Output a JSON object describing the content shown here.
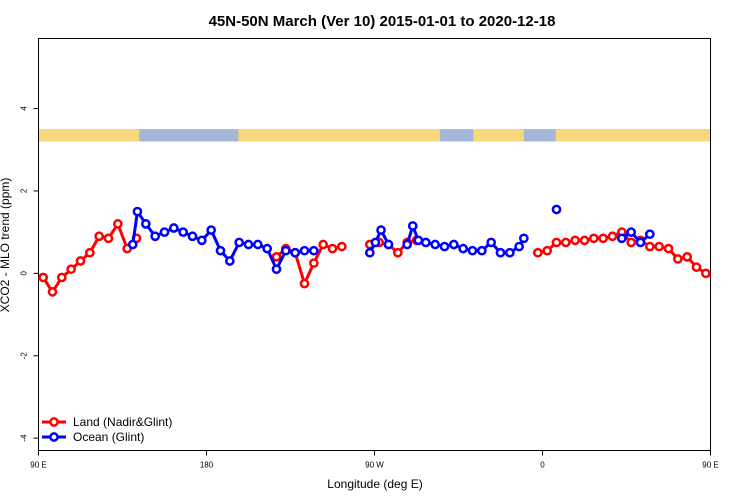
{
  "chart_data": {
    "type": "line",
    "title": "45N-50N March (Ver 10)   2015-01-01 to 2020-12-18",
    "xlabel": "Longitude (deg E)",
    "ylabel": "XCO2 - MLO trend (ppm)",
    "xlim": [
      90,
      450
    ],
    "ylim": [
      -4.3,
      5.7
    ],
    "grid": false,
    "legend_position": "bottom-left",
    "x_ticks": [
      {
        "value": 90,
        "label": "90 E"
      },
      {
        "value": 180,
        "label": "180"
      },
      {
        "value": 270,
        "label": "90 W"
      },
      {
        "value": 360,
        "label": "0"
      },
      {
        "value": 450,
        "label": "90 E"
      },
      {
        "value": 540,
        "label": "180"
      }
    ],
    "y_ticks": [
      {
        "value": -4,
        "label": "-4"
      },
      {
        "value": -2,
        "label": "-2"
      },
      {
        "value": 0,
        "label": "0"
      },
      {
        "value": 2,
        "label": "2"
      },
      {
        "value": 4,
        "label": "4"
      }
    ],
    "map_strip": {
      "y_range": [
        3.2,
        3.5
      ],
      "ocean_color": "#a3b7d9",
      "land_color": "#f7d87a",
      "land_segments": [
        [
          90,
          144
        ],
        [
          197,
          305
        ],
        [
          323,
          350
        ],
        [
          367,
          484
        ],
        [
          487,
          522
        ]
      ]
    },
    "series": [
      {
        "name": "Land (Nadir&Glint)",
        "color": "#ff0000",
        "points": [
          [
            92.5,
            -0.1
          ],
          [
            97.5,
            -0.45
          ],
          [
            102.5,
            -0.1
          ],
          [
            107.5,
            0.1
          ],
          [
            112.5,
            0.3
          ],
          [
            117.5,
            0.5
          ],
          [
            122.5,
            0.9
          ],
          [
            127.5,
            0.85
          ],
          [
            132.5,
            1.2
          ],
          [
            137.5,
            0.6
          ],
          [
            142.5,
            0.85
          ],
          null,
          [
            217.5,
            0.4
          ],
          [
            222.5,
            0.6
          ],
          [
            227.5,
            0.5
          ],
          [
            232.5,
            -0.25
          ],
          [
            237.5,
            0.25
          ],
          [
            242.5,
            0.7
          ],
          [
            247.5,
            0.6
          ],
          [
            252.5,
            0.65
          ],
          null,
          [
            267.5,
            0.7
          ],
          [
            272.5,
            0.75
          ],
          [
            277.5,
            0.7
          ],
          [
            282.5,
            0.5
          ],
          [
            287.5,
            0.75
          ],
          [
            292.5,
            0.8
          ],
          null,
          [
            357.5,
            0.5
          ],
          [
            362.5,
            0.55
          ],
          [
            367.5,
            0.75
          ],
          [
            372.5,
            0.75
          ],
          [
            377.5,
            0.8
          ],
          [
            382.5,
            0.8
          ],
          [
            387.5,
            0.85
          ],
          [
            392.5,
            0.85
          ],
          [
            397.5,
            0.9
          ],
          [
            402.5,
            1.0
          ],
          [
            407.5,
            0.75
          ],
          [
            412.5,
            0.8
          ],
          [
            417.5,
            0.65
          ],
          [
            422.5,
            0.65
          ],
          [
            427.5,
            0.6
          ],
          [
            432.5,
            0.35
          ],
          [
            437.5,
            0.4
          ],
          [
            442.5,
            0.15
          ],
          [
            447.5,
            0.0
          ],
          [
            452.5,
            -0.1
          ],
          [
            457.5,
            -0.45
          ],
          [
            462.5,
            -0.05
          ],
          [
            467.5,
            0.15
          ],
          [
            472.5,
            0.3
          ],
          [
            477.5,
            0.5
          ],
          [
            482.5,
            0.9
          ],
          [
            487.5,
            0.85
          ],
          [
            492.5,
            1.2
          ],
          [
            497.5,
            0.6
          ],
          [
            502.5,
            0.85
          ]
        ]
      },
      {
        "name": "Ocean (Glint)",
        "color": "#0000ff",
        "points": [
          [
            140.5,
            0.7
          ],
          [
            143,
            1.5
          ],
          [
            147.5,
            1.2
          ],
          [
            152.5,
            0.9
          ],
          [
            157.5,
            1.0
          ],
          [
            162.5,
            1.1
          ],
          [
            167.5,
            1.0
          ],
          [
            172.5,
            0.9
          ],
          [
            177.5,
            0.8
          ],
          [
            182.5,
            1.05
          ],
          [
            187.5,
            0.55
          ],
          [
            192.5,
            0.3
          ],
          [
            197.5,
            0.75
          ],
          [
            202.5,
            0.7
          ],
          [
            207.5,
            0.7
          ],
          [
            212.5,
            0.6
          ],
          [
            217.5,
            0.1
          ],
          [
            222.5,
            0.55
          ],
          [
            227.5,
            0.5
          ],
          [
            232.5,
            0.55
          ],
          [
            237.5,
            0.55
          ],
          null,
          [
            267.5,
            0.5
          ],
          [
            270.5,
            0.75
          ],
          [
            273.5,
            1.05
          ],
          [
            277.5,
            0.7
          ],
          null,
          [
            287.5,
            0.7
          ],
          [
            290.5,
            1.15
          ],
          [
            293.5,
            0.8
          ],
          [
            297.5,
            0.75
          ],
          [
            302.5,
            0.7
          ],
          [
            307.5,
            0.65
          ],
          [
            312.5,
            0.7
          ],
          [
            317.5,
            0.6
          ],
          [
            322.5,
            0.55
          ],
          [
            327.5,
            0.55
          ],
          [
            332.5,
            0.75
          ],
          [
            337.5,
            0.5
          ],
          [
            342.5,
            0.5
          ],
          [
            347.5,
            0.65
          ],
          [
            350,
            0.85
          ],
          null,
          [
            367.5,
            1.55
          ],
          null,
          [
            402.5,
            0.85
          ],
          [
            407.5,
            1.0
          ],
          [
            412.5,
            0.75
          ],
          [
            417.5,
            0.95
          ],
          null,
          [
            502.5,
            0.7
          ],
          [
            507.5,
            1.5
          ],
          [
            512.5,
            1.2
          ],
          [
            517.5,
            0.9
          ],
          [
            522.5,
            1.0
          ],
          [
            527.5,
            1.1
          ],
          [
            532.5,
            1.0
          ],
          [
            537.5,
            0.9
          ],
          [
            542.5,
            0.8
          ]
        ]
      }
    ]
  }
}
